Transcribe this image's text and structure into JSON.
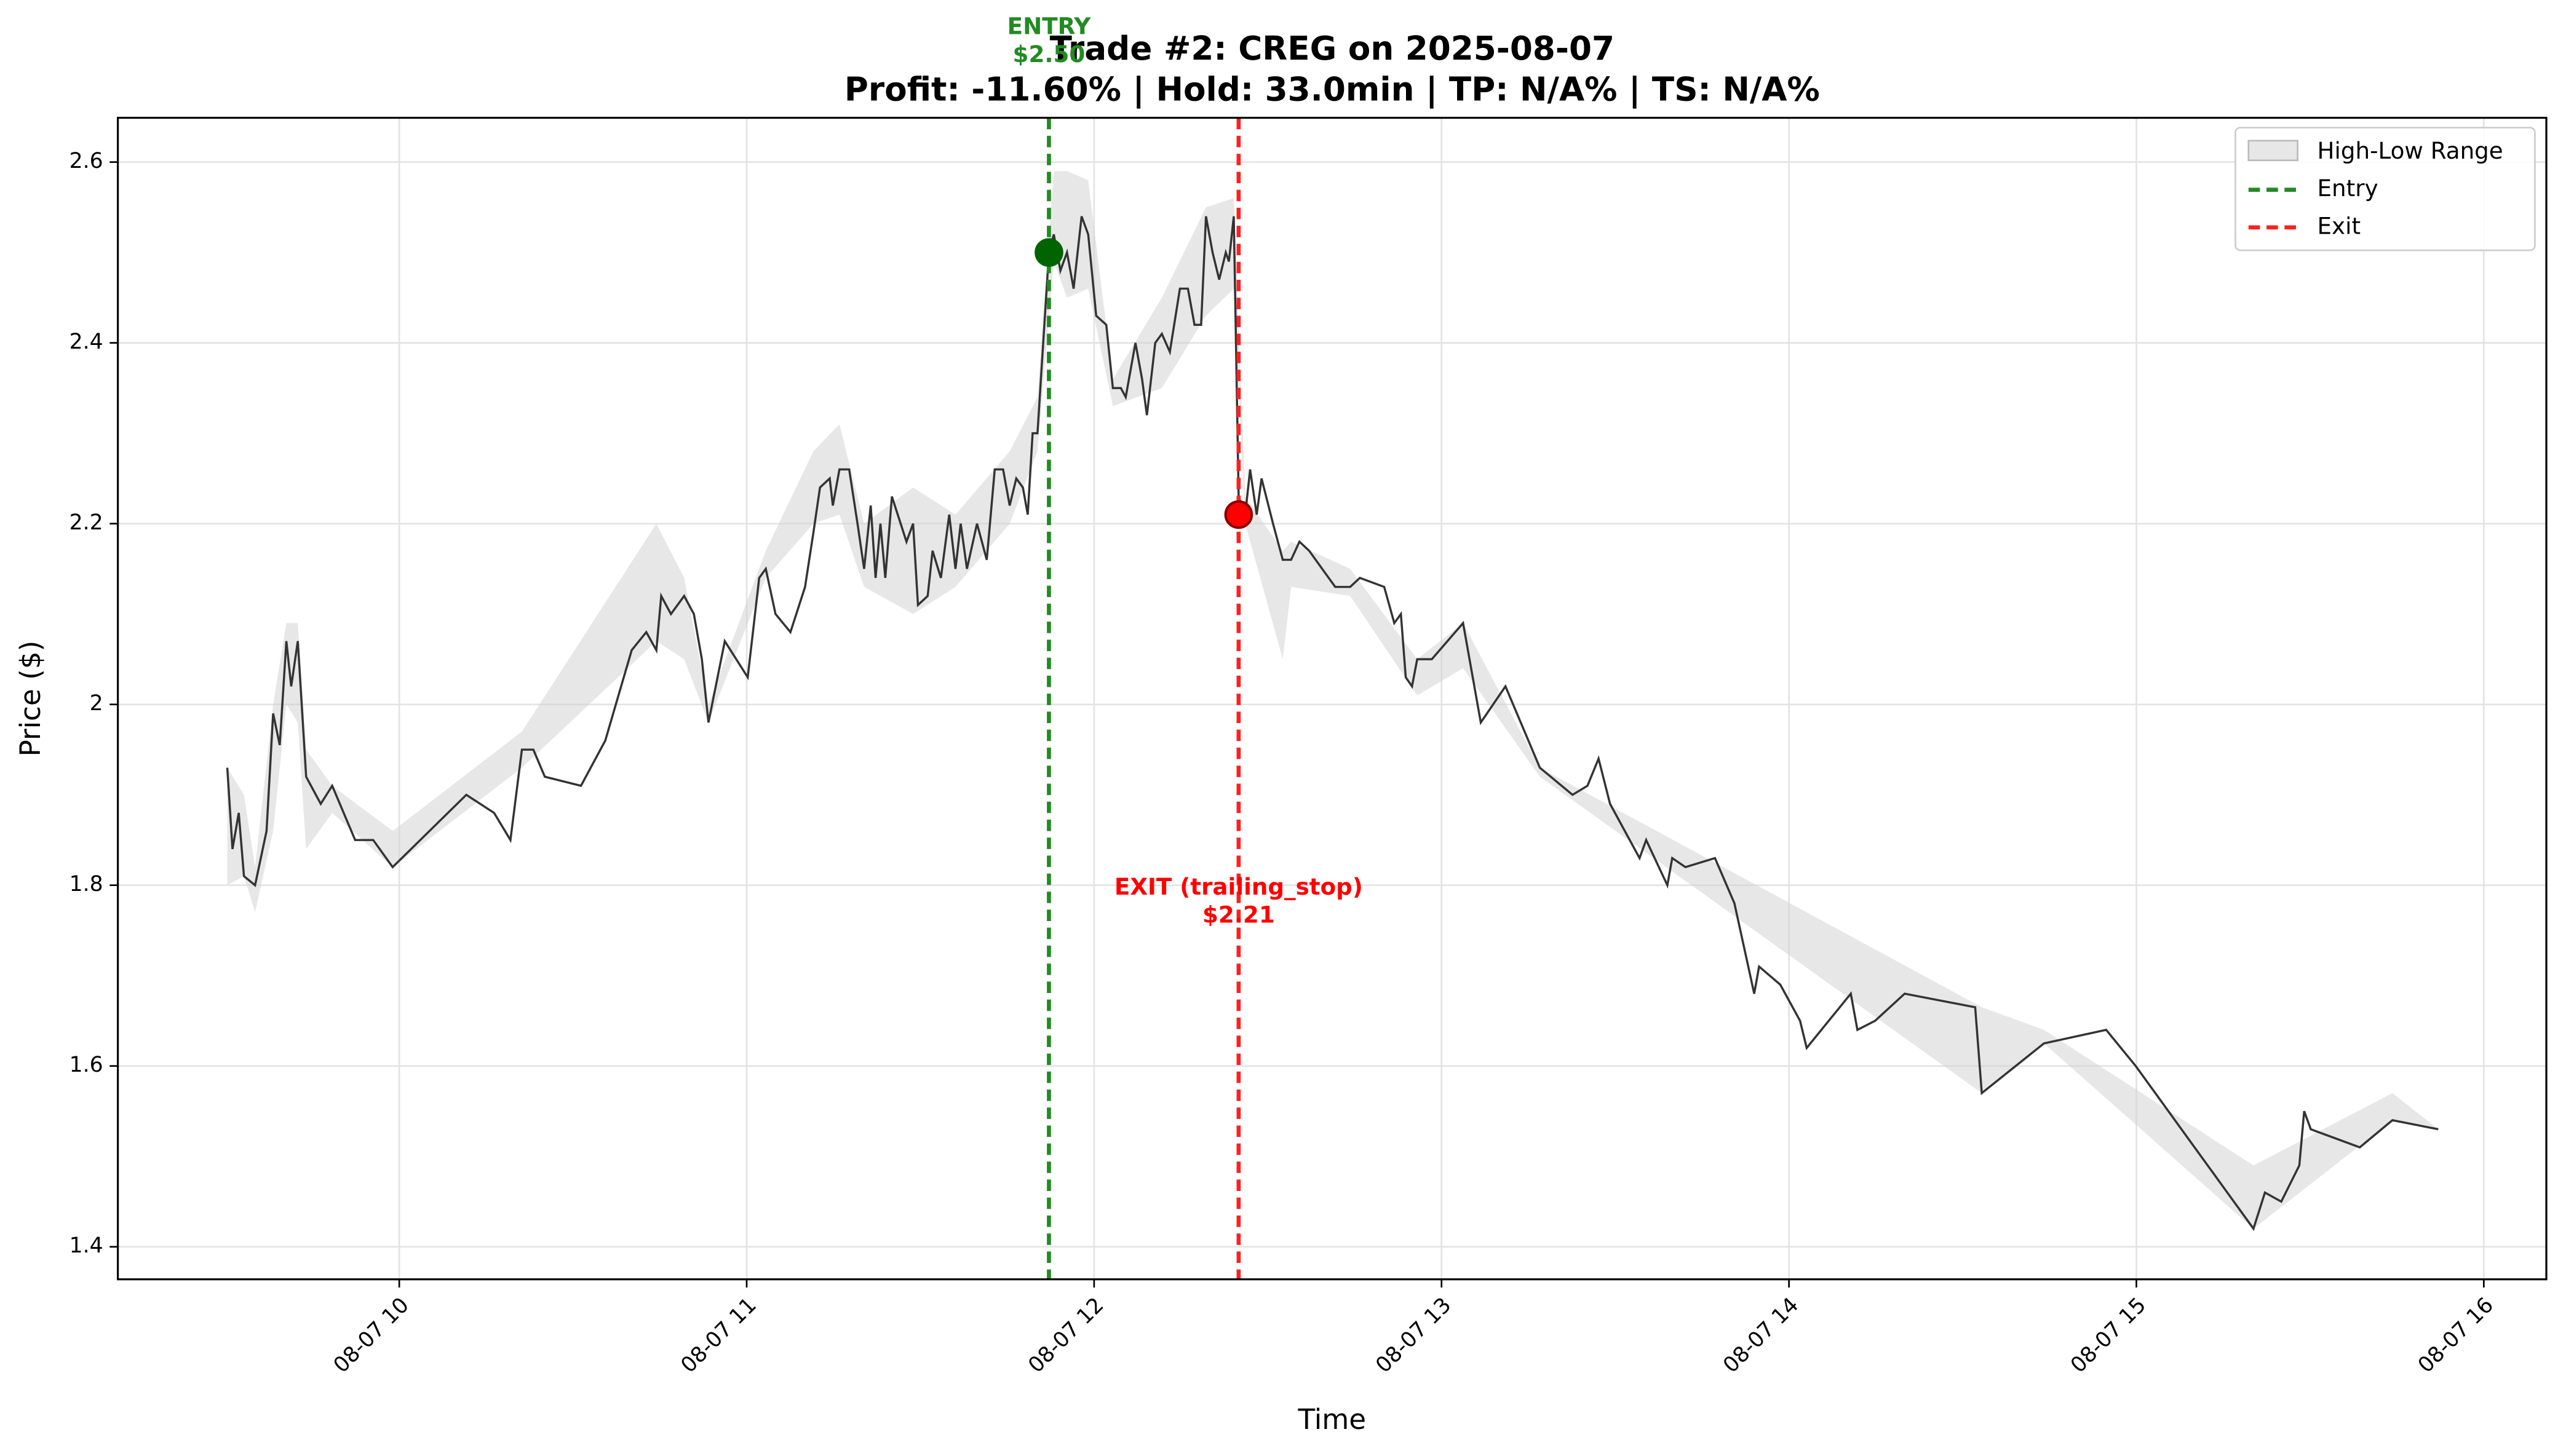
{
  "chart_data": {
    "type": "line",
    "title": "Trade #2: CREG on 2025-08-07",
    "subtitle": "Profit: -11.60% | Hold: 33.0min | TP: N/A% | TS: N/A%",
    "x_label": "Time",
    "y_label": "Price ($)",
    "color": "#333333",
    "grid": true,
    "legend": "upper right",
    "x": [
      9.505,
      9.52,
      9.538,
      9.553,
      9.585,
      9.618,
      9.637,
      9.656,
      9.675,
      9.689,
      9.708,
      9.732,
      9.774,
      9.807,
      9.84,
      9.873,
      9.925,
      9.981,
      10.193,
      10.273,
      10.32,
      10.353,
      10.386,
      10.419,
      10.523,
      10.593,
      10.669,
      10.711,
      10.74,
      10.754,
      10.782,
      10.82,
      10.848,
      10.871,
      10.89,
      10.937,
      11.003,
      11.036,
      11.055,
      11.083,
      11.126,
      11.168,
      11.192,
      11.211,
      11.239,
      11.248,
      11.267,
      11.295,
      11.319,
      11.338,
      11.357,
      11.371,
      11.385,
      11.399,
      11.418,
      11.46,
      11.479,
      11.493,
      11.521,
      11.535,
      11.559,
      11.583,
      11.601,
      11.616,
      11.634,
      11.663,
      11.691,
      11.714,
      11.738,
      11.757,
      11.776,
      11.795,
      11.809,
      11.823,
      11.837,
      11.87,
      11.884,
      11.903,
      11.922,
      11.941,
      11.964,
      11.983,
      12.006,
      12.035,
      12.054,
      12.077,
      12.091,
      12.119,
      12.138,
      12.152,
      12.176,
      12.195,
      12.218,
      12.247,
      12.27,
      12.289,
      12.308,
      12.322,
      12.341,
      12.36,
      12.379,
      12.388,
      12.402,
      12.416,
      12.435,
      12.449,
      12.468,
      12.482,
      12.515,
      12.543,
      12.567,
      12.591,
      12.619,
      12.694,
      12.737,
      12.765,
      12.835,
      12.864,
      12.883,
      12.897,
      12.915,
      12.93,
      12.972,
      13.062,
      13.113,
      13.184,
      13.283,
      13.377,
      13.42,
      13.452,
      13.485,
      13.57,
      13.589,
      13.65,
      13.664,
      13.702,
      13.787,
      13.843,
      13.9,
      13.914,
      13.975,
      14.032,
      14.051,
      14.178,
      14.197,
      14.248,
      14.333,
      14.536,
      14.555,
      14.734,
      14.913,
      14.998,
      15.337,
      15.37,
      15.417,
      15.469,
      15.483,
      15.502,
      15.643,
      15.737,
      15.869
    ],
    "values": [
      1.93,
      1.84,
      1.88,
      1.81,
      1.8,
      1.86,
      1.99,
      1.955,
      2.07,
      2.02,
      2.07,
      1.92,
      1.89,
      1.91,
      1.88,
      1.85,
      1.85,
      1.82,
      1.9,
      1.88,
      1.85,
      1.95,
      1.95,
      1.92,
      1.91,
      1.96,
      2.06,
      2.08,
      2.06,
      2.12,
      2.1,
      2.12,
      2.1,
      2.05,
      1.98,
      2.07,
      2.03,
      2.14,
      2.15,
      2.1,
      2.08,
      2.13,
      2.19,
      2.24,
      2.25,
      2.22,
      2.26,
      2.26,
      2.2,
      2.15,
      2.22,
      2.14,
      2.2,
      2.14,
      2.23,
      2.18,
      2.2,
      2.11,
      2.12,
      2.17,
      2.14,
      2.21,
      2.15,
      2.2,
      2.15,
      2.2,
      2.16,
      2.26,
      2.26,
      2.22,
      2.25,
      2.24,
      2.21,
      2.3,
      2.3,
      2.5,
      2.52,
      2.48,
      2.5,
      2.46,
      2.54,
      2.52,
      2.43,
      2.42,
      2.35,
      2.35,
      2.34,
      2.4,
      2.36,
      2.32,
      2.4,
      2.41,
      2.39,
      2.46,
      2.46,
      2.42,
      2.42,
      2.54,
      2.5,
      2.47,
      2.5,
      2.49,
      2.54,
      2.23,
      2.21,
      2.26,
      2.21,
      2.25,
      2.2,
      2.16,
      2.16,
      2.18,
      2.17,
      2.13,
      2.13,
      2.14,
      2.13,
      2.09,
      2.1,
      2.03,
      2.02,
      2.05,
      2.05,
      2.09,
      1.98,
      2.02,
      1.93,
      1.9,
      1.91,
      1.94,
      1.89,
      1.83,
      1.85,
      1.8,
      1.83,
      1.82,
      1.83,
      1.78,
      1.68,
      1.71,
      1.69,
      1.65,
      1.62,
      1.68,
      1.64,
      1.65,
      1.68,
      1.665,
      1.57,
      1.625,
      1.64,
      1.6,
      1.42,
      1.46,
      1.45,
      1.49,
      1.55,
      1.53,
      1.51,
      1.54,
      1.53
    ],
    "range": {
      "name": "High-Low Range",
      "color": "#d3d3d3",
      "x": [
        9.505,
        9.553,
        9.585,
        9.637,
        9.675,
        9.708,
        9.732,
        9.807,
        9.981,
        10.353,
        10.74,
        10.82,
        10.89,
        11.055,
        11.192,
        11.267,
        11.338,
        11.479,
        11.601,
        11.757,
        11.837,
        11.884,
        11.922,
        11.983,
        12.054,
        12.195,
        12.322,
        12.402,
        12.435,
        12.543,
        12.567,
        12.737,
        12.93,
        13.062,
        13.283,
        14.555,
        14.734,
        15.337,
        15.737,
        15.869
      ],
      "low": [
        1.8,
        1.81,
        1.77,
        1.86,
        2.0,
        1.98,
        1.84,
        1.88,
        1.82,
        1.93,
        2.07,
        2.05,
        1.98,
        2.14,
        2.2,
        2.21,
        2.13,
        2.1,
        2.13,
        2.2,
        2.28,
        2.49,
        2.45,
        2.46,
        2.33,
        2.35,
        2.43,
        2.46,
        2.2,
        2.05,
        2.13,
        2.12,
        2.01,
        2.04,
        1.92,
        1.57,
        1.625,
        1.42,
        1.54,
        1.53
      ],
      "high": [
        1.93,
        1.9,
        1.82,
        2.0,
        2.09,
        2.09,
        1.95,
        1.91,
        1.86,
        1.97,
        2.2,
        2.14,
        2.0,
        2.17,
        2.28,
        2.31,
        2.2,
        2.24,
        2.21,
        2.28,
        2.34,
        2.59,
        2.59,
        2.58,
        2.36,
        2.45,
        2.55,
        2.56,
        2.23,
        2.17,
        2.18,
        2.15,
        2.05,
        2.09,
        1.93,
        1.665,
        1.64,
        1.49,
        1.57,
        1.53
      ]
    },
    "markers": [
      {
        "name": "Entry",
        "x": 11.87,
        "price": 2.5,
        "label": "ENTRY",
        "price_label": "$2.50",
        "color": "#228b22",
        "dot_color": "#006400"
      },
      {
        "name": "Exit",
        "x": 12.416,
        "price": 2.21,
        "label": "EXIT (trailing_stop)",
        "price_label": "$2.21",
        "color": "#ff2020",
        "dot_color": "#ff0000"
      }
    ],
    "xlim": [
      9.19,
      16.18
    ],
    "ylim": [
      1.364,
      2.649
    ],
    "xticks": [
      {
        "value": 10,
        "label": "08-07 10"
      },
      {
        "value": 11,
        "label": "08-07 11"
      },
      {
        "value": 12,
        "label": "08-07 12"
      },
      {
        "value": 13,
        "label": "08-07 13"
      },
      {
        "value": 14,
        "label": "08-07 14"
      },
      {
        "value": 15,
        "label": "08-07 15"
      },
      {
        "value": 16,
        "label": "08-07 16"
      }
    ],
    "yticks": [
      1.4,
      1.6,
      1.8,
      2.0,
      2.2,
      2.4,
      2.6
    ]
  }
}
